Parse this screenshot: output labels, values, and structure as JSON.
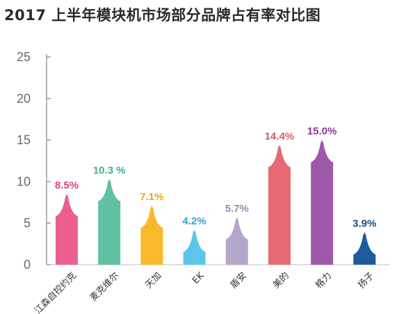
{
  "title": "2017 上半年模块机市场部分品牌占有率对比图",
  "chart_data": {
    "type": "bar",
    "title": "2017 上半年模块机市场部分品牌占有率对比图",
    "categories": [
      "江森自控约克",
      "麦克维尔",
      "天加",
      "EK",
      "盾安",
      "美的",
      "格力",
      "扬子"
    ],
    "values": [
      8.5,
      10.3,
      7.1,
      4.2,
      5.7,
      14.4,
      15.0,
      3.9
    ],
    "data_labels": [
      "8.5%",
      "10.3 %",
      "7.1%",
      "4.2%",
      "5.7%",
      "14.4%",
      "15.0%",
      "3.9%"
    ],
    "ylim": [
      0,
      25
    ],
    "yticks": [
      "0",
      "5",
      "10",
      "15",
      "20",
      "25"
    ],
    "xlabel": "",
    "ylabel": "",
    "grid": false,
    "colors": [
      "#ec5f8d",
      "#5fc0a4",
      "#f8b92c",
      "#5cc6ea",
      "#b5a6cc",
      "#e56a73",
      "#9e57a9",
      "#1e5b9a"
    ],
    "label_colors": [
      "#d9457a",
      "#4aab8e",
      "#eaa51c",
      "#3a9fd0",
      "#9a89b8",
      "#d85a64",
      "#84398f",
      "#1b4d88"
    ]
  }
}
